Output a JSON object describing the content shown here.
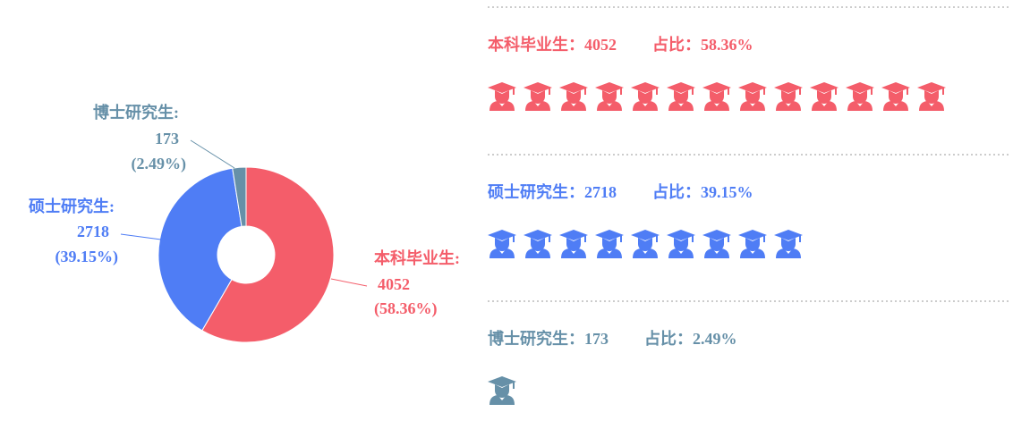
{
  "chart_data": {
    "type": "pie",
    "categories": [
      "本科毕业生:",
      "硕士研究生:",
      "博士研究生:"
    ],
    "values": [
      4052,
      2718,
      173
    ],
    "percent_labels": [
      "(58.36%)",
      "(39.15%)",
      "(2.49%)"
    ],
    "colors": [
      "#f45d6a",
      "#4f7df5",
      "#6690a8"
    ]
  },
  "rows": [
    {
      "label": "本科毕业生：",
      "count": 4052,
      "share_label": "占比：",
      "share": "58.36%",
      "icons": 13
    },
    {
      "label": "硕士研究生：",
      "count": 2718,
      "share_label": "占比：",
      "share": "39.15%",
      "icons": 9
    },
    {
      "label": "博士研究生：",
      "count": 173,
      "share_label": "占比：",
      "share": "2.49%",
      "icons": 1
    }
  ]
}
